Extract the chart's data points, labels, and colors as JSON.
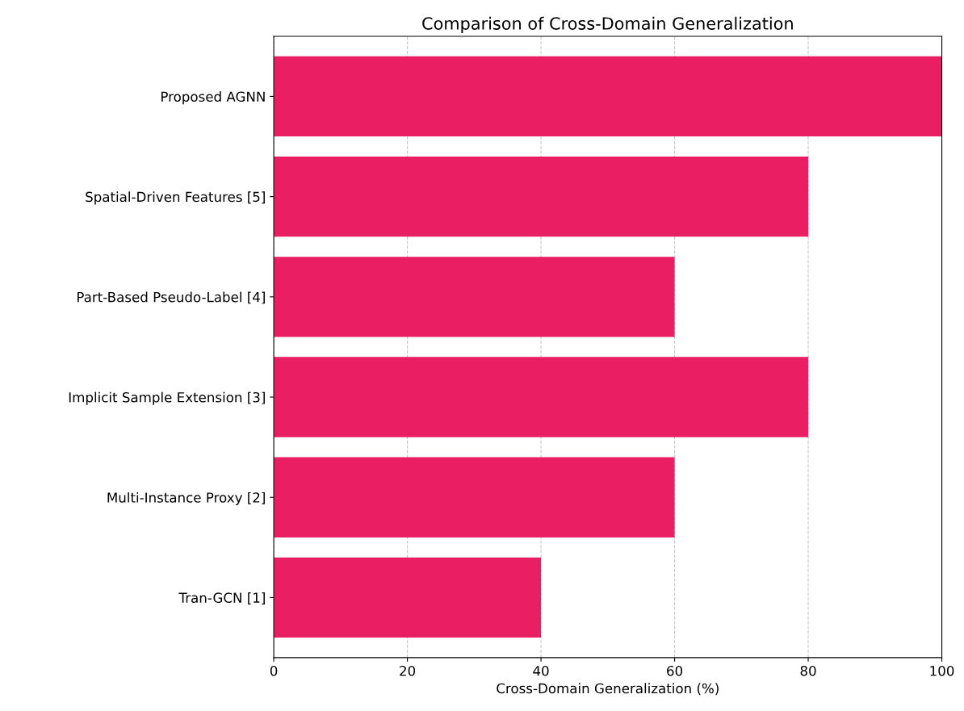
{
  "chart_data": {
    "type": "bar",
    "orientation": "horizontal",
    "title": "Comparison of Cross-Domain Generalization",
    "xlabel": "Cross-Domain Generalization (%)",
    "categories": [
      "Proposed AGNN",
      "Spatial-Driven Features [5]",
      "Part-Based Pseudo-Label [4]",
      "Implicit Sample Extension [3]",
      "Multi-Instance Proxy [2]",
      "Tran-GCN [1]"
    ],
    "values": [
      100,
      80,
      60,
      80,
      60,
      40
    ],
    "color": "#e91e63",
    "xlim": [
      0,
      100
    ],
    "xticks": [
      0,
      20,
      40,
      60,
      80,
      100
    ],
    "grid": "x",
    "line_style": "dashed"
  }
}
